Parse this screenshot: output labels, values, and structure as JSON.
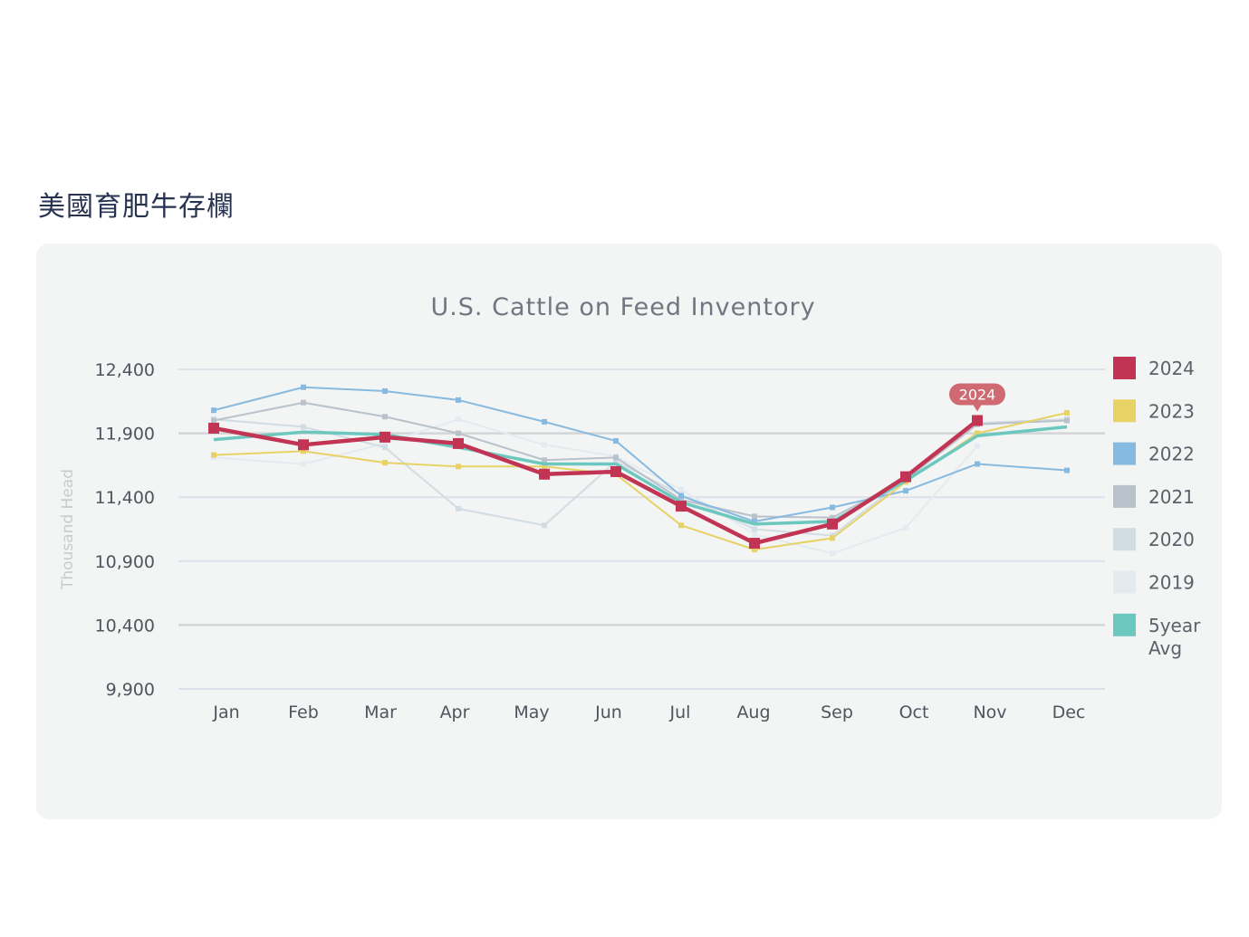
{
  "page": {
    "heading": "美國育肥牛存欄"
  },
  "chart_data": {
    "type": "line",
    "title": "U.S. Cattle on Feed Inventory",
    "xlabel": "",
    "ylabel": "Thousand Head",
    "categories": [
      "Jan",
      "Feb",
      "Mar",
      "Apr",
      "May",
      "Jun",
      "Jul",
      "Aug",
      "Sep",
      "Oct",
      "Nov",
      "Dec"
    ],
    "ylim": [
      9900,
      12400
    ],
    "yticks": [
      9900,
      10400,
      10900,
      11400,
      11900,
      12400
    ],
    "ytick_labels": [
      "9,900",
      "10,400",
      "10,900",
      "11,400",
      "11,900",
      "12,400"
    ],
    "legend_position": "right",
    "series": [
      {
        "name": "2019",
        "color": "#e4ebf0",
        "values": [
          11710,
          11660,
          11820,
          12010,
          11810,
          11720,
          11460,
          11110,
          10960,
          11160,
          11800,
          null
        ]
      },
      {
        "name": "2020",
        "color": "#d2dce3",
        "values": [
          12010,
          11950,
          11790,
          11310,
          11180,
          11680,
          11420,
          11150,
          11100,
          11540,
          11980,
          12010
        ]
      },
      {
        "name": "2021",
        "color": "#b9c2ca",
        "values": [
          12000,
          12140,
          12030,
          11900,
          11690,
          11710,
          11380,
          11250,
          11240,
          11540,
          11970,
          12000
        ]
      },
      {
        "name": "2022",
        "color": "#86bae0",
        "values": [
          12080,
          12260,
          12230,
          12160,
          11990,
          11840,
          11410,
          11210,
          11320,
          11450,
          11660,
          11610
        ]
      },
      {
        "name": "2023",
        "color": "#e6d265",
        "values": [
          11730,
          11760,
          11670,
          11640,
          11640,
          11580,
          11180,
          10990,
          11080,
          11520,
          11900,
          12060
        ]
      },
      {
        "name": "5year Avg",
        "color": "#6cc7be",
        "values": [
          11850,
          11910,
          11890,
          11790,
          11660,
          11660,
          11360,
          11190,
          11210,
          11530,
          11880,
          11950
        ]
      },
      {
        "name": "2024",
        "color": "#c23454",
        "values": [
          11940,
          11810,
          11870,
          11820,
          11580,
          11600,
          11330,
          11040,
          11190,
          11560,
          12000,
          null
        ]
      }
    ],
    "legend": [
      {
        "name": "2024",
        "color": "#c23454"
      },
      {
        "name": "2023",
        "color": "#e6d265"
      },
      {
        "name": "2022",
        "color": "#86bae0"
      },
      {
        "name": "2021",
        "color": "#b9c2ca"
      },
      {
        "name": "2020",
        "color": "#d2dce3"
      },
      {
        "name": "2019",
        "color": "#e4ebf0"
      },
      {
        "name": "5year Avg",
        "color": "#6cc7be"
      }
    ],
    "tooltip": {
      "label": "2024",
      "category": "Nov",
      "series": "2024"
    }
  }
}
